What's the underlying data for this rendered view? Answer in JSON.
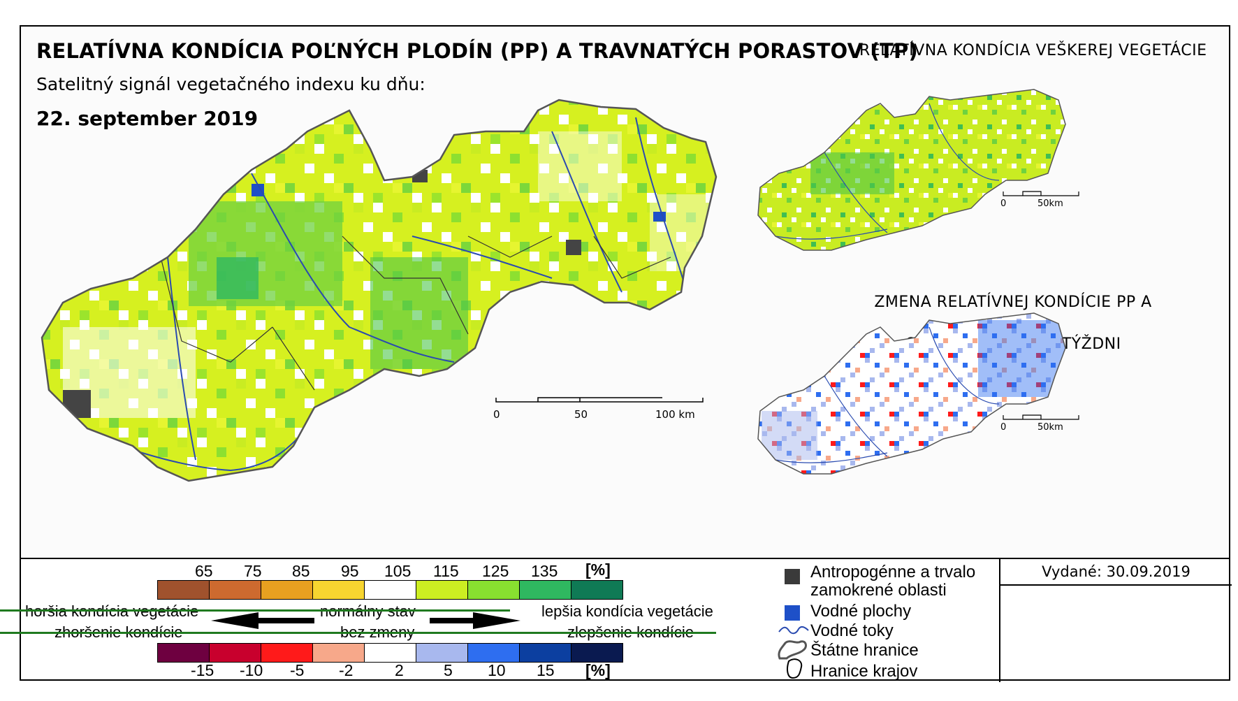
{
  "header": {
    "title": "RELATÍVNA KONDÍCIA POĽNÝCH PLODÍN (PP) A TRAVNATÝCH PORASTOV (TP)",
    "subtitle": "Satelitný signál vegetačného indexu ku dňu:",
    "date": "22. september 2019"
  },
  "insets": {
    "vegetation_title": "RELATÍVNA KONDÍCIA VEŠKEREJ VEGETÁCIE",
    "change_title_line1": "ZMENA RELATÍVNEJ KONDÍCIE PP A TP",
    "change_title_line2": "OPROTI MINULÉMU TÝŽDNI"
  },
  "scale_main": {
    "zero": "0",
    "mid": "50",
    "end": "100 km"
  },
  "scale_inset": {
    "zero": "0",
    "end": "50km"
  },
  "legend_condition": {
    "ticks": [
      "65",
      "75",
      "85",
      "95",
      "105",
      "115",
      "125",
      "135"
    ],
    "unit": "[%]",
    "colors": [
      "#a0522d",
      "#cd6a2f",
      "#e8a020",
      "#f7d530",
      "#ffffff",
      "#ccee22",
      "#88e030",
      "#2fb860",
      "#0f7a55"
    ],
    "worse": "horšia kondícia vegetácie",
    "normal": "normálny stav",
    "better": "lepšia kondícia vegetácie"
  },
  "legend_change": {
    "worse": "zhoršenie kondície",
    "normal": "bez zmeny",
    "better": "zlepšenie kondície",
    "ticks": [
      "-15",
      "-10",
      "-5",
      "-2",
      "2",
      "5",
      "10",
      "15"
    ],
    "unit": "[%]",
    "colors": [
      "#6e0040",
      "#c8002d",
      "#ff1a1a",
      "#f7a88a",
      "#ffffff",
      "#a8b8ee",
      "#2e6ef0",
      "#0c3fa0",
      "#0a1a50"
    ]
  },
  "map_key": {
    "anthropogenic_line1": "Antropogénne a trvalo",
    "anthropogenic_line2": "zamokrené oblasti",
    "water_bodies": "Vodné plochy",
    "streams": "Vodné toky",
    "state_border": "Štátne hranice",
    "region_border": "Hranice krajov"
  },
  "issued": "Vydané: 30.09.2019"
}
